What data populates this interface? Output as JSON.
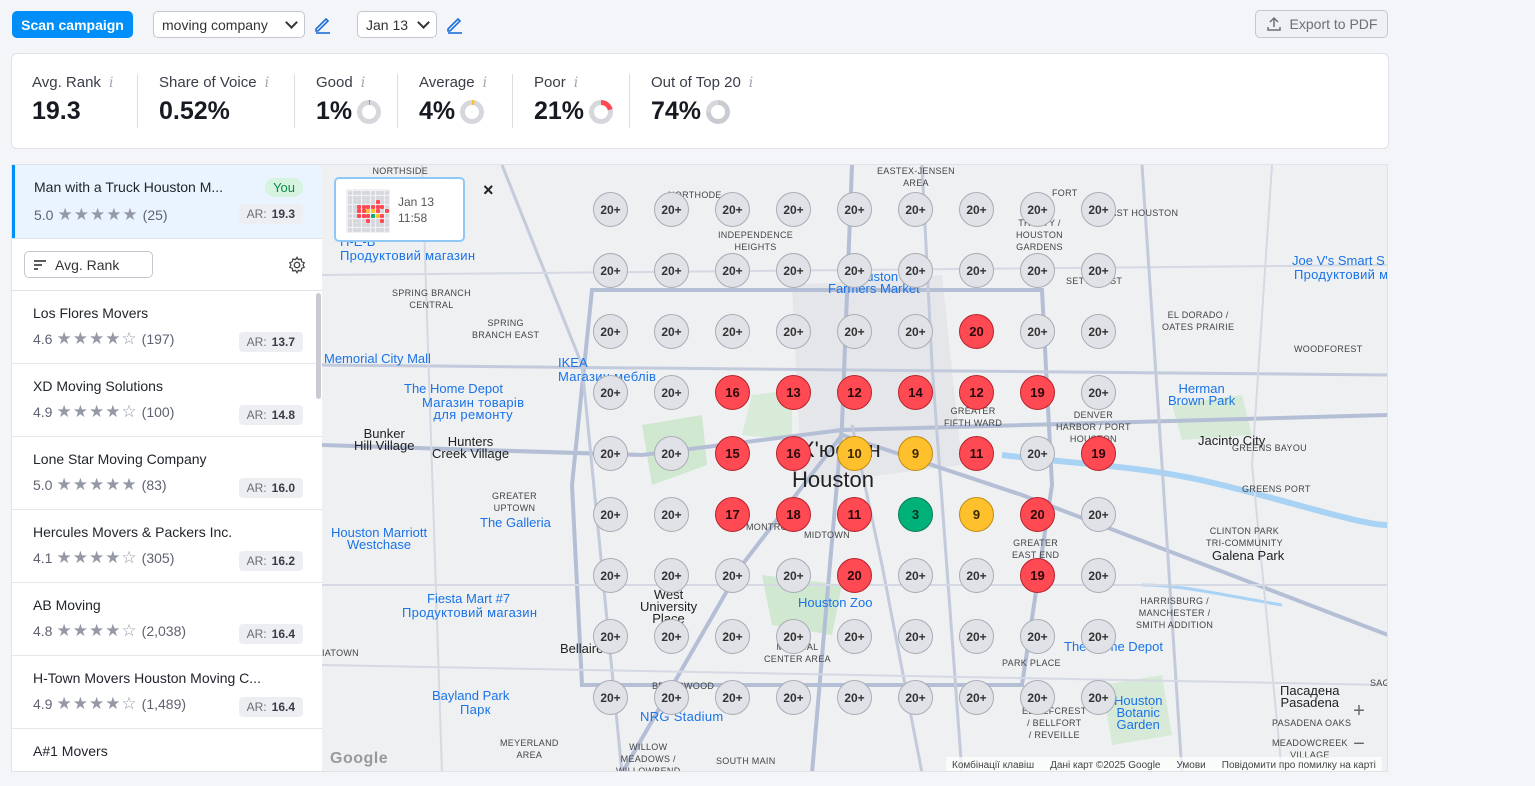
{
  "toolbar": {
    "scan_label": "Scan campaign",
    "keyword": "moving company",
    "date": "Jan 13",
    "export_label": "Export to PDF"
  },
  "metrics": [
    {
      "label": "Avg. Rank",
      "value": "19.3"
    },
    {
      "label": "Share of Voice",
      "value": "0.52%"
    },
    {
      "label": "Good",
      "value": "1%",
      "fraction": 0.01,
      "color": "#00b27a"
    },
    {
      "label": "Average",
      "value": "4%",
      "fraction": 0.04,
      "color": "#ffc02d"
    },
    {
      "label": "Poor",
      "value": "21%",
      "fraction": 0.21,
      "color": "#ff4953"
    },
    {
      "label": "Out of Top 20",
      "value": "74%",
      "fraction": 0.74,
      "color": "#c9cbd2"
    }
  ],
  "info_glyph": "i",
  "you": {
    "name": "Man with a Truck Houston M...",
    "rating": "5.0",
    "stars": 5,
    "reviews": "(25)",
    "badge": "You",
    "ar_label": "AR:",
    "ar": "19.3"
  },
  "sort": {
    "label": "Avg. Rank"
  },
  "competitors": [
    {
      "name": "Los Flores Movers",
      "rating": "4.6",
      "stars": 4,
      "reviews": "(197)",
      "ar": "13.7"
    },
    {
      "name": "XD Moving Solutions",
      "rating": "4.9",
      "stars": 4,
      "reviews": "(100)",
      "ar": "14.8"
    },
    {
      "name": "Lone Star Moving Company",
      "rating": "5.0",
      "stars": 5,
      "reviews": "(83)",
      "ar": "16.0"
    },
    {
      "name": "Hercules Movers & Packers Inc.",
      "rating": "4.1",
      "stars": 4,
      "reviews": "(305)",
      "ar": "16.2"
    },
    {
      "name": "AB Moving",
      "rating": "4.8",
      "stars": 4,
      "reviews": "(2,038)",
      "ar": "16.4"
    },
    {
      "name": "H-Town Movers Houston Moving C...",
      "rating": "4.9",
      "stars": 4,
      "reviews": "(1,489)",
      "ar": "16.4"
    },
    {
      "name": "A#1 Movers",
      "rating": "",
      "stars": 0,
      "reviews": "",
      "ar": ""
    }
  ],
  "snapshot": {
    "date": "Jan 13",
    "time": "11:58"
  },
  "grid": [
    [
      "20+",
      "20+",
      "20+",
      "20+",
      "20+",
      "20+",
      "20+",
      "20+",
      "20+"
    ],
    [
      "20+",
      "20+",
      "20+",
      "20+",
      "20+",
      "20+",
      "20+",
      "20+",
      "20+"
    ],
    [
      "20+",
      "20+",
      "20+",
      "20+",
      "20+",
      "20+",
      "20",
      "20+",
      "20+"
    ],
    [
      "20+",
      "20+",
      "16",
      "13",
      "12",
      "14",
      "12",
      "19",
      "20+"
    ],
    [
      "20+",
      "20+",
      "15",
      "16",
      "10",
      "9",
      "11",
      "20+",
      "19"
    ],
    [
      "20+",
      "20+",
      "17",
      "18",
      "11",
      "3",
      "9",
      "20",
      "20+"
    ],
    [
      "20+",
      "20+",
      "20+",
      "20+",
      "20",
      "20+",
      "20+",
      "19",
      "20+"
    ],
    [
      "20+",
      "20+",
      "20+",
      "20+",
      "20+",
      "20+",
      "20+",
      "20+",
      "20+"
    ],
    [
      "20+",
      "20+",
      "20+",
      "20+",
      "20+",
      "20+",
      "20+",
      "20+",
      "20+"
    ]
  ],
  "map_labels": {
    "houston_uk": "Х'юстон",
    "houston": "Houston",
    "bunker": "Bunker\nHill Village",
    "hunters": "Hunters\nCreek Village",
    "jacinto": "Jacinto City",
    "galena": "Galena Park",
    "bellaire": "Bellaire",
    "westu": "West\nUniversity\nPlace",
    "pasadena": "Пасадена\nPasadena",
    "memorial": "Memorial City Mall",
    "homedepot1": "The Home Depot",
    "homedepot1_sub": "Магазин товарів\nдля ремонту",
    "ikea": "IKEA",
    "ikea_sub": "Магазин меблів",
    "galleria": "The Galleria",
    "marriott": "Houston Marriott\nWestchase",
    "fiesta": "Fiesta Mart #7",
    "fiesta_sub": "Продуктовий магазин",
    "heb": "H-E-B",
    "heb_sub": "Продуктовий магазин",
    "farmers": "Houston\nFarmers Market",
    "joev": "Joe V's Smart S",
    "joev_sub": "Продуктовий м",
    "herman": "Herman\nBrown Park",
    "zoo": "Houston Zoo",
    "bayland": "Bayland Park",
    "bayland_sub": "Парк",
    "homedepot2": "The Home Depot",
    "botanic": "Houston\nBotanic\nGarden",
    "eastex": "EASTEX-JENSEN\nAREA",
    "northside": "NORTHSIDE\nNORTHWEST",
    "northode": "NORTHODE",
    "independence": "INDEPENDENCE\nHEIGHTS",
    "spring_central": "SPRING BRANCH\nCENTRAL",
    "spring_east": "SPRING\nBRANCH EAST",
    "greater_uptown": "GREATER\nUPTOWN",
    "east_houston": "EAST HOUSTON",
    "trinity": "TRINITY /\nHOUSTON\nGARDENS",
    "fourth_ward": "GREATER\nFIFTH WARD",
    "denver": "DENVER\nHARBOR / PORT\nHOUSTON",
    "eldorado": "EL DORADO /\nOATES PRAIRIE",
    "woodforest": "WOODFOREST",
    "greens_bayou": "GREENS BAYOU",
    "greens_port": "GREENS PORT",
    "clinton": "CLINTON PARK\nTRI-COMMUNITY",
    "east_end": "GREATER\nEAST END",
    "harrisburg": "HARRISBURG /\nMANCHESTER /\nSMITH ADDITION",
    "midtown": "MIDTOWN",
    "montrose": "MONTROSE",
    "medical": "MEDICAL\nCENTER AREA",
    "meyerland": "MEYERLAND\nAREA",
    "willow": "WILLOW\nMEADOWS /\nWILLOWBEND\nAREA",
    "south_main": "SOUTH MAIN",
    "braeswood": "BRAESWOOD",
    "nrg": "NRG Stadium",
    "pasadena_oaks": "PASADENA OAKS",
    "meadowcreek": "MEADOWCREEK\nVILLAGE",
    "bellfort": "EDGEFCREST\n/ BELLFORT\n/ REVEILLE",
    "park_place": "PARK PLACE",
    "fort_bend": "FORT",
    "settegast": "SETTEGAST",
    "alief": "IATOWN",
    "sdotrn": "SAGEM"
  },
  "attribution": {
    "shortcuts": "Комбінації клавіш",
    "data": "Дані карт ©2025 Google",
    "terms": "Умови",
    "report": "Повідомити про помилку на карті"
  },
  "google_logo": "Google",
  "zoom_in": "+",
  "zoom_out": "−",
  "close_glyph": "×"
}
